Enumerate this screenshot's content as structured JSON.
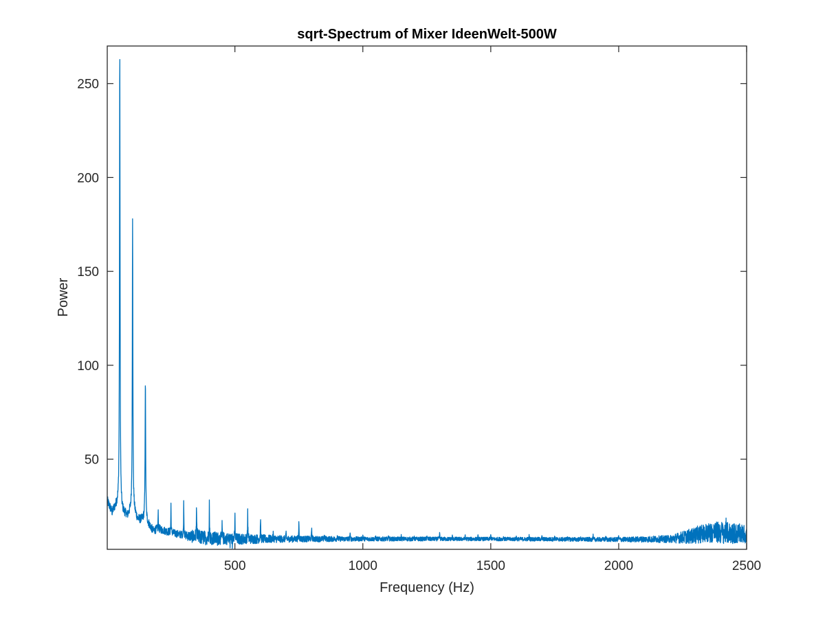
{
  "chart_data": {
    "type": "line",
    "title": "sqrt-Spectrum of Mixer IdeenWelt-500W",
    "xlabel": "Frequency (Hz)",
    "ylabel": "Power",
    "xlim": [
      1,
      2500
    ],
    "ylim": [
      2,
      270
    ],
    "xticks": [
      {
        "value": 500,
        "label": "500"
      },
      {
        "value": 1000,
        "label": "1000"
      },
      {
        "value": 1500,
        "label": "1500"
      },
      {
        "value": 2000,
        "label": "2000"
      },
      {
        "value": 2500,
        "label": "2500"
      }
    ],
    "yticks": [
      {
        "value": 50,
        "label": "50"
      },
      {
        "value": 100,
        "label": "100"
      },
      {
        "value": 150,
        "label": "150"
      },
      {
        "value": 200,
        "label": "200"
      },
      {
        "value": 250,
        "label": "250"
      }
    ],
    "grid": false,
    "legend": "none",
    "series": [
      {
        "color": "#0072BD",
        "baseline": [
          [
            1,
            28
          ],
          [
            20,
            22
          ],
          [
            40,
            26
          ],
          [
            60,
            22
          ],
          [
            80,
            20
          ],
          [
            100,
            24
          ],
          [
            120,
            18
          ],
          [
            150,
            18
          ],
          [
            180,
            12
          ],
          [
            200,
            13
          ],
          [
            250,
            11
          ],
          [
            300,
            9.5
          ],
          [
            350,
            8.5
          ],
          [
            400,
            8
          ],
          [
            500,
            7.5
          ],
          [
            700,
            7.5
          ],
          [
            1000,
            7.5
          ],
          [
            1500,
            7.5
          ],
          [
            2000,
            7.2
          ],
          [
            2200,
            7.5
          ],
          [
            2280,
            9
          ],
          [
            2350,
            11
          ],
          [
            2400,
            11
          ],
          [
            2450,
            10.5
          ],
          [
            2500,
            10
          ]
        ],
        "noise": [
          [
            1,
            2.5
          ],
          [
            300,
            2
          ],
          [
            350,
            4
          ],
          [
            500,
            3
          ],
          [
            700,
            1.8
          ],
          [
            1000,
            1.2
          ],
          [
            1500,
            1.0
          ],
          [
            2000,
            1.2
          ],
          [
            2200,
            2
          ],
          [
            2300,
            4.5
          ],
          [
            2400,
            6
          ],
          [
            2500,
            5
          ]
        ],
        "peaks": [
          [
            50,
            270
          ],
          [
            100,
            177
          ],
          [
            150,
            92
          ],
          [
            200,
            22
          ],
          [
            250,
            26
          ],
          [
            300,
            28
          ],
          [
            350,
            27
          ],
          [
            400,
            27
          ],
          [
            450,
            15
          ],
          [
            500,
            20
          ],
          [
            550,
            23
          ],
          [
            600,
            19
          ],
          [
            650,
            11
          ],
          [
            700,
            11
          ],
          [
            750,
            18
          ],
          [
            800,
            14
          ],
          [
            850,
            10
          ],
          [
            900,
            10
          ],
          [
            950,
            11
          ],
          [
            1000,
            10
          ],
          [
            1050,
            9
          ],
          [
            1100,
            9
          ],
          [
            1150,
            9
          ],
          [
            1200,
            9
          ],
          [
            1250,
            9.5
          ],
          [
            1300,
            11
          ],
          [
            1350,
            9
          ],
          [
            1400,
            9
          ],
          [
            1450,
            9
          ],
          [
            1500,
            10
          ],
          [
            1550,
            9
          ],
          [
            1600,
            9
          ],
          [
            1650,
            9.5
          ],
          [
            1700,
            9
          ],
          [
            1750,
            9
          ],
          [
            1800,
            9
          ],
          [
            1850,
            9
          ],
          [
            1900,
            9
          ],
          [
            1950,
            9
          ],
          [
            2000,
            9.5
          ]
        ]
      }
    ]
  }
}
